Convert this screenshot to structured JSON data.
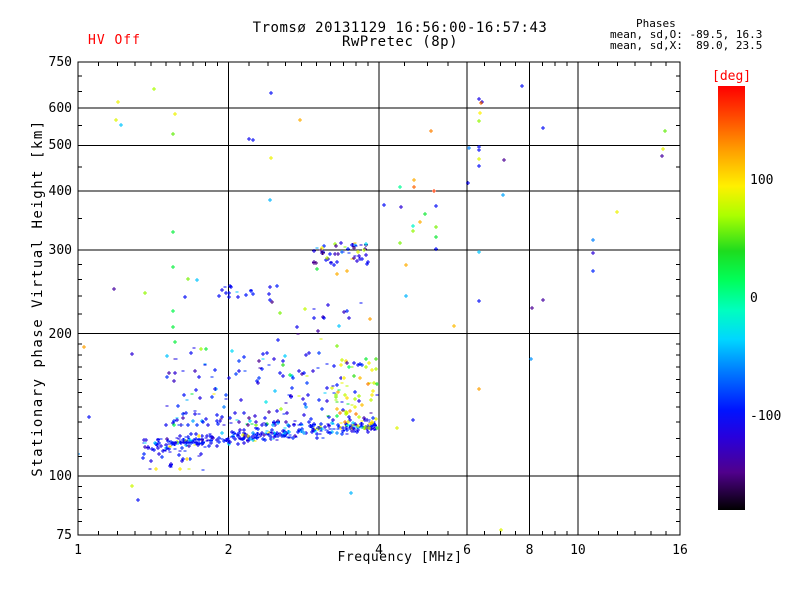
{
  "header": {
    "hv_status": "HV Off",
    "title": "Tromsø 20131129 16:56:00-16:57:43",
    "subtitle": "RwPretec (8p)",
    "stats_heading": "Phases",
    "stats_line_o": "mean, sd,O: -89.5, 16.3",
    "stats_line_x": "mean, sd,X:  89.0, 23.5"
  },
  "colors": {
    "hv_text": "#ff0000",
    "colorbar_label": "#ff0000",
    "axis": "#000000",
    "background": "#ffffff"
  },
  "chart_data": {
    "type": "scatter",
    "title": "Tromsø 20131129 16:56:00-16:57:43",
    "subtitle": "RwPretec (8p)",
    "xlabel": "Frequency [MHz]",
    "ylabel": "Stationary phase Virtual Height [km]",
    "x_scale": "log",
    "y_scale": "log",
    "xlim": [
      1,
      16
    ],
    "ylim": [
      75,
      750
    ],
    "x_major_ticks": [
      1,
      2,
      4,
      6,
      8,
      10,
      16
    ],
    "x_minor_ticks": [
      1.1,
      1.2,
      1.3,
      1.4,
      1.5,
      1.6,
      1.7,
      1.8,
      1.9,
      2.2,
      2.4,
      2.6,
      2.8,
      3,
      3.2,
      3.4,
      3.6,
      3.8,
      4.5,
      5,
      5.5,
      6.5,
      7,
      7.5,
      8.5,
      9,
      9.5,
      11,
      12,
      13,
      14,
      15
    ],
    "y_major_ticks": [
      750,
      600,
      500,
      400,
      300,
      200,
      100,
      75
    ],
    "y_minor_ticks": [
      700,
      650,
      550,
      450,
      350,
      280,
      260,
      240,
      220,
      190,
      180,
      170,
      160,
      150,
      140,
      130,
      120,
      110,
      95,
      90,
      85,
      80
    ],
    "grid_x": [
      2,
      4,
      6,
      8,
      10
    ],
    "grid_y": [
      600,
      500,
      400,
      300,
      200,
      100
    ],
    "marker": "plus",
    "render_seed": 42,
    "colorbar": {
      "label": "[deg]",
      "units": "deg",
      "range": [
        -180,
        180
      ],
      "tick_values": [
        100,
        0,
        -100
      ],
      "stops": [
        [
          180,
          "#ff0000"
        ],
        [
          155,
          "#ff4600"
        ],
        [
          125,
          "#ffa000"
        ],
        [
          95,
          "#fff000"
        ],
        [
          70,
          "#aaff00"
        ],
        [
          40,
          "#1edc1e"
        ],
        [
          15,
          "#00ff5a"
        ],
        [
          -10,
          "#00ffbe"
        ],
        [
          -35,
          "#00d7ff"
        ],
        [
          -60,
          "#0082ff"
        ],
        [
          -95,
          "#0014ff"
        ],
        [
          -118,
          "#2800dc"
        ],
        [
          -148,
          "#50008c"
        ],
        [
          -180,
          "#000000"
        ]
      ]
    },
    "sparse_points": [
      [
        1.42,
        657,
        70
      ],
      [
        1.2,
        617,
        90
      ],
      [
        1.19,
        565,
        85
      ],
      [
        1.22,
        552,
        -40
      ],
      [
        1.56,
        582,
        90
      ],
      [
        1.55,
        528,
        55
      ],
      [
        2.43,
        645,
        -100
      ],
      [
        2.78,
        565,
        120
      ],
      [
        2.2,
        515,
        -105
      ],
      [
        2.24,
        512,
        -100
      ],
      [
        2.43,
        470,
        90
      ],
      [
        2.42,
        383,
        -45
      ],
      [
        1.55,
        328,
        25
      ],
      [
        1.55,
        276,
        25
      ],
      [
        1.66,
        261,
        60
      ],
      [
        1.73,
        260,
        -40
      ],
      [
        1.18,
        248,
        -140
      ],
      [
        1.36,
        244,
        65
      ],
      [
        1.91,
        240,
        -100
      ],
      [
        2,
        239,
        -100
      ],
      [
        2.09,
        239,
        -105
      ],
      [
        2.17,
        241,
        -95
      ],
      [
        1.64,
        239,
        -100
      ],
      [
        2.44,
        233,
        -150
      ],
      [
        2.53,
        221,
        60
      ],
      [
        3.3,
        267,
        120
      ],
      [
        3.84,
        215,
        125
      ],
      [
        3.32,
        207,
        -40
      ],
      [
        1.55,
        223,
        20
      ],
      [
        1.55,
        206,
        25
      ],
      [
        3,
        274,
        30
      ],
      [
        3.63,
        298,
        85
      ],
      [
        7.73,
        667,
        -100
      ],
      [
        6.34,
        626,
        -110
      ],
      [
        6.43,
        618,
        -115
      ],
      [
        6.4,
        615,
        140
      ],
      [
        6.37,
        585,
        95
      ],
      [
        6.34,
        562,
        65
      ],
      [
        5.09,
        536,
        135
      ],
      [
        8.5,
        544,
        -100
      ],
      [
        14.9,
        536,
        55
      ],
      [
        6.06,
        493,
        -60
      ],
      [
        6.34,
        497,
        -100
      ],
      [
        6.34,
        488,
        -100
      ],
      [
        14.8,
        490,
        88
      ],
      [
        14.7,
        474,
        -140
      ],
      [
        6.34,
        468,
        85
      ],
      [
        7.1,
        466,
        -145
      ],
      [
        6.34,
        452,
        -100
      ],
      [
        6.03,
        416,
        -105
      ],
      [
        4.7,
        422,
        120
      ],
      [
        4.7,
        408,
        145
      ],
      [
        4.4,
        408,
        0
      ],
      [
        5.16,
        400,
        160
      ],
      [
        4.1,
        374,
        -100
      ],
      [
        4.42,
        370,
        -120
      ],
      [
        5.2,
        372,
        -100
      ],
      [
        7.07,
        392,
        -50
      ],
      [
        4.95,
        358,
        30
      ],
      [
        4.83,
        344,
        120
      ],
      [
        4.68,
        338,
        -15
      ],
      [
        5.2,
        336,
        60
      ],
      [
        4.68,
        329,
        65
      ],
      [
        5.2,
        320,
        30
      ],
      [
        4.4,
        310,
        60
      ],
      [
        5.2,
        302,
        -100
      ],
      [
        6.34,
        298,
        -40
      ],
      [
        10.7,
        296,
        -120
      ],
      [
        11.95,
        361,
        90
      ],
      [
        10.7,
        315,
        -60
      ],
      [
        4.53,
        279,
        120
      ],
      [
        10.7,
        271,
        -90
      ],
      [
        4.53,
        240,
        -45
      ],
      [
        6.34,
        234,
        -100
      ],
      [
        8.5,
        236,
        -140
      ],
      [
        8.1,
        227,
        -145
      ],
      [
        5.66,
        207,
        115
      ],
      [
        8.05,
        177,
        -55
      ],
      [
        6.34,
        153,
        125
      ],
      [
        4.68,
        131,
        -100
      ],
      [
        4.35,
        126,
        85
      ],
      [
        7,
        77,
        85
      ],
      [
        3.52,
        92,
        -45
      ],
      [
        1.03,
        187,
        125
      ],
      [
        1,
        111,
        -55
      ],
      [
        1.56,
        192,
        25
      ],
      [
        2.51,
        194,
        -100
      ],
      [
        3.3,
        188,
        60
      ],
      [
        1.28,
        181,
        -120
      ],
      [
        1.28,
        95,
        80
      ],
      [
        1.32,
        89,
        -100
      ],
      [
        1.05,
        133,
        -100
      ],
      [
        2.42,
        236,
        -100
      ],
      [
        3.45,
        271,
        120
      ]
    ],
    "clusters": [
      {
        "name": "e-region-streak",
        "f_range": [
          1.35,
          3.95
        ],
        "h_range": [
          111,
          121
        ],
        "h_profile": "triangular",
        "h_slope_per_octave": 8,
        "f_ref": 1.4,
        "count": 320,
        "deg_choices": [
          [
            0.82,
            -115,
            -85
          ],
          [
            0.1,
            -60,
            -30
          ],
          [
            0.05,
            75,
            105
          ],
          [
            0.03,
            -148,
            -126
          ]
        ]
      },
      {
        "name": "e-region-left-tail",
        "f_range": [
          1.33,
          1.8
        ],
        "h_range": [
          103,
          113
        ],
        "h_bias": 1,
        "count": 22,
        "deg_choices": [
          [
            0.85,
            -115,
            -85
          ],
          [
            0.15,
            70,
            115
          ]
        ]
      },
      {
        "name": "diffuse-cloud",
        "f_range": [
          1.5,
          3.25
        ],
        "h_range": [
          128,
          188
        ],
        "h_bias": 2.2,
        "count": 170,
        "deg_choices": [
          [
            0.68,
            -122,
            -80
          ],
          [
            0.12,
            -152,
            -128
          ],
          [
            0.1,
            -62,
            -25
          ],
          [
            0.05,
            58,
            100
          ],
          [
            0.05,
            15,
            45
          ]
        ]
      },
      {
        "name": "yellow-cloud",
        "f_range": [
          3.22,
          3.97
        ],
        "h_range": [
          126,
          178
        ],
        "h_bias": 1.8,
        "count": 95,
        "deg_choices": [
          [
            0.42,
            58,
            100
          ],
          [
            0.2,
            100,
            140
          ],
          [
            0.14,
            15,
            50
          ],
          [
            0.18,
            -115,
            -80
          ],
          [
            0.06,
            -150,
            -128
          ]
        ]
      },
      {
        "name": "f-region-cluster",
        "f_range": [
          2.95,
          3.87
        ],
        "h_range": [
          278,
          312
        ],
        "h_bias": 1,
        "count": 52,
        "deg_choices": [
          [
            0.58,
            -125,
            -88
          ],
          [
            0.25,
            -158,
            -128
          ],
          [
            0.09,
            -60,
            -30
          ],
          [
            0.08,
            60,
            120
          ]
        ]
      },
      {
        "name": "streak-250km",
        "f_range": [
          1.88,
          2.5
        ],
        "h_range": [
          240,
          252
        ],
        "h_bias": 1,
        "count": 13,
        "deg_choices": [
          [
            0.9,
            -110,
            -85
          ],
          [
            0.1,
            -50,
            -30
          ]
        ]
      },
      {
        "name": "mid-sparse",
        "f_range": [
          2.6,
          3.75
        ],
        "h_range": [
          192,
          240
        ],
        "h_bias": 1,
        "count": 14,
        "deg_choices": [
          [
            0.58,
            -120,
            -85
          ],
          [
            0.18,
            -150,
            -128
          ],
          [
            0.12,
            58,
            100
          ],
          [
            0.12,
            -50,
            -20
          ]
        ]
      }
    ]
  }
}
